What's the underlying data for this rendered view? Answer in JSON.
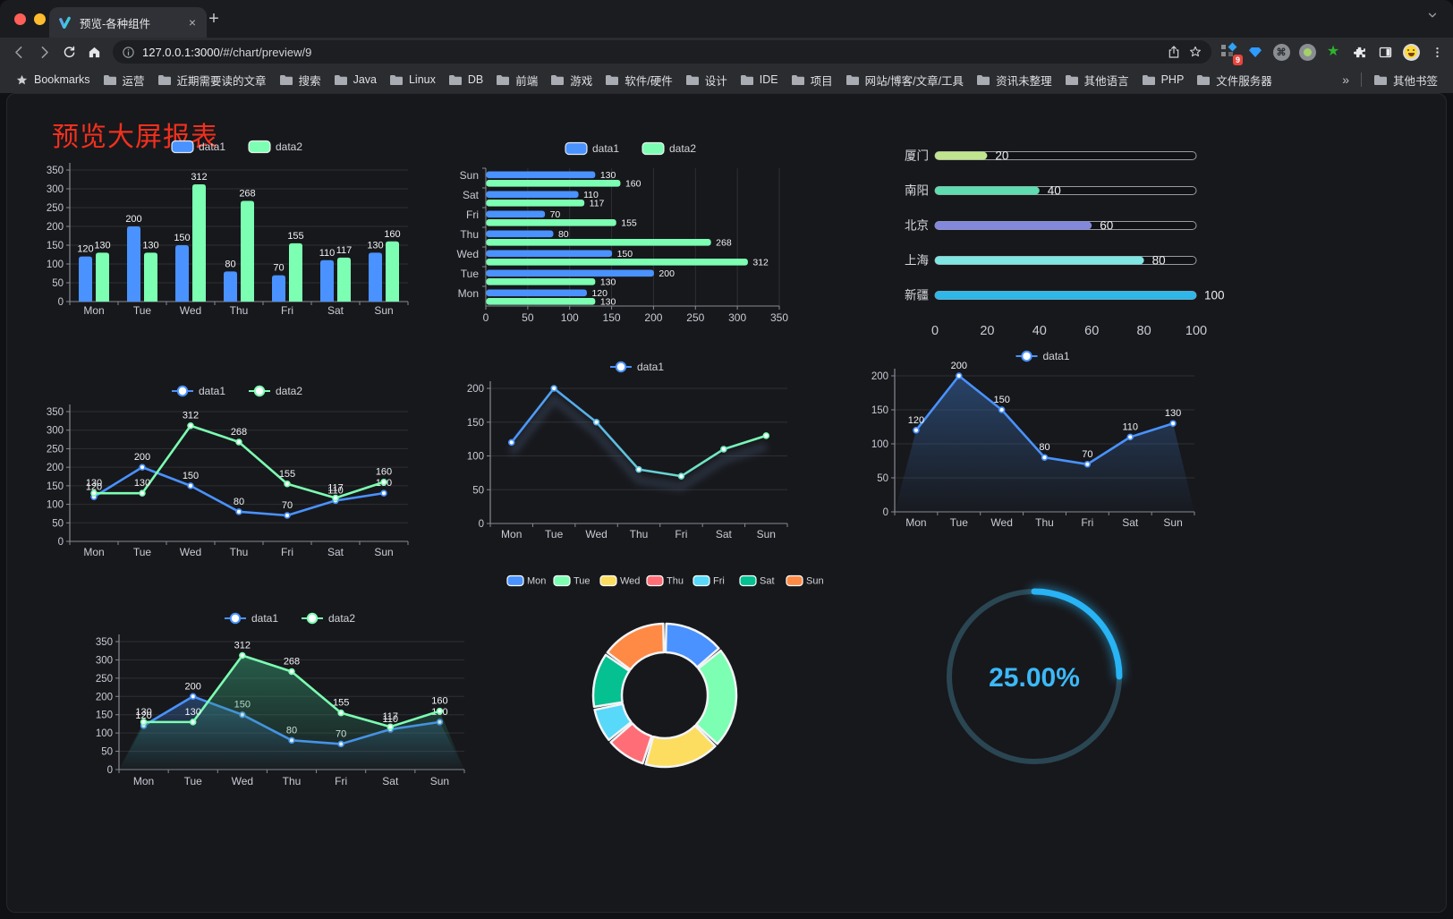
{
  "browser": {
    "traffic_lights": [
      "#ff5f57",
      "#febc2e",
      "#28c840"
    ],
    "tab_title": "预览-各种组件",
    "tab_close": "×",
    "new_tab_glyph": "+",
    "url_host": "127.0.0.1:3000",
    "url_rest": "/#/chart/preview/9",
    "extension_badge": "9",
    "cmd_symbol": "⌘",
    "bookmarks_label": "Bookmarks",
    "bookmarks": [
      "运营",
      "近期需要读的文章",
      "搜索",
      "Java",
      "Linux",
      "DB",
      "前端",
      "游戏",
      "软件/硬件",
      "设计",
      "IDE",
      "项目",
      "网站/博客/文章/工具",
      "资讯未整理",
      "其他语言",
      "PHP",
      "文件服务器"
    ],
    "bookmarks_overflow": "»",
    "other_bookmarks": "其他书签"
  },
  "page": {
    "title": "预览大屏报表",
    "title_color": "#f2301d"
  },
  "palette": {
    "accent_blue": "#4992ff",
    "accent_green": "#7cffb2",
    "gauge_blue": "#28b4f5",
    "axis_text": "#c9cbd4",
    "value_text": "#f1f2f4"
  },
  "chart_data": [
    {
      "id": "bar-grouped",
      "type": "bar",
      "categories": [
        "Mon",
        "Tue",
        "Wed",
        "Thu",
        "Fri",
        "Sat",
        "Sun"
      ],
      "series": [
        {
          "name": "data1",
          "color": "#4992ff",
          "values": [
            120,
            200,
            150,
            80,
            70,
            110,
            130
          ]
        },
        {
          "name": "data2",
          "color": "#7cffb2",
          "values": [
            130,
            130,
            312,
            268,
            155,
            117,
            160
          ]
        }
      ],
      "ylim": [
        0,
        350
      ],
      "ytick": 50,
      "legend_position": "top",
      "grid": true,
      "value_labels": true
    },
    {
      "id": "bar-horizontal",
      "type": "bar-horizontal",
      "categories_bottom_to_top": [
        "Mon",
        "Tue",
        "Wed",
        "Thu",
        "Fri",
        "Sat",
        "Sun"
      ],
      "series": [
        {
          "name": "data1",
          "color": "#4992ff",
          "values": [
            120,
            200,
            150,
            80,
            70,
            110,
            130
          ]
        },
        {
          "name": "data2",
          "color": "#7cffb2",
          "values": [
            130,
            130,
            312,
            268,
            155,
            117,
            160
          ]
        }
      ],
      "xlim": [
        0,
        350
      ],
      "xtick": 50,
      "legend_position": "top",
      "grid": true,
      "value_labels": true
    },
    {
      "id": "progress",
      "type": "progress-bar",
      "rows": [
        {
          "label": "厦门",
          "value": 20,
          "color": "#bfe58f"
        },
        {
          "label": "南阳",
          "value": 40,
          "color": "#5fdcb0"
        },
        {
          "label": "北京",
          "value": 60,
          "color": "#8289dc"
        },
        {
          "label": "上海",
          "value": 80,
          "color": "#7fe6e3"
        },
        {
          "label": "新疆",
          "value": 100,
          "color": "#2eb7e8"
        }
      ],
      "xlim": [
        0,
        100
      ],
      "xticks": [
        0,
        20,
        40,
        60,
        80,
        100
      ]
    },
    {
      "id": "line-two",
      "type": "line",
      "categories": [
        "Mon",
        "Tue",
        "Wed",
        "Thu",
        "Fri",
        "Sat",
        "Sun"
      ],
      "series": [
        {
          "name": "data1",
          "color": "#4992ff",
          "values": [
            120,
            200,
            150,
            80,
            70,
            110,
            130
          ]
        },
        {
          "name": "data2",
          "color": "#7cffb2",
          "values": [
            130,
            130,
            312,
            268,
            155,
            117,
            160
          ]
        }
      ],
      "ylim": [
        0,
        350
      ],
      "ytick": 50,
      "legend_position": "top",
      "value_labels": true
    },
    {
      "id": "line-gradient",
      "type": "line",
      "categories": [
        "Mon",
        "Tue",
        "Wed",
        "Thu",
        "Fri",
        "Sat",
        "Sun"
      ],
      "series": [
        {
          "name": "data1",
          "gradient": [
            "#4992ff",
            "#7cffb2"
          ],
          "values": [
            120,
            200,
            150,
            80,
            70,
            110,
            130
          ]
        }
      ],
      "ylim": [
        0,
        200
      ],
      "ytick": 50,
      "legend_position": "top",
      "value_labels": false
    },
    {
      "id": "line-area",
      "type": "area",
      "categories": [
        "Mon",
        "Tue",
        "Wed",
        "Thu",
        "Fri",
        "Sat",
        "Sun"
      ],
      "series": [
        {
          "name": "data1",
          "color": "#4992ff",
          "area_fill": [
            "rgba(58,110,180,0.50)",
            "rgba(58,110,180,0.02)"
          ],
          "values": [
            120,
            200,
            150,
            80,
            70,
            110,
            130
          ]
        }
      ],
      "ylim": [
        0,
        200
      ],
      "ytick": 50,
      "legend_position": "top",
      "value_labels": true
    },
    {
      "id": "area-two",
      "type": "area",
      "categories": [
        "Mon",
        "Tue",
        "Wed",
        "Thu",
        "Fri",
        "Sat",
        "Sun"
      ],
      "series": [
        {
          "name": "data1",
          "color": "#4992ff",
          "area_fill": [
            "rgba(58,110,180,0.45)",
            "rgba(58,110,180,0.02)"
          ],
          "values": [
            120,
            200,
            150,
            80,
            70,
            110,
            130
          ]
        },
        {
          "name": "data2",
          "color": "#7cffb2",
          "area_fill": [
            "rgba(52,150,112,0.55)",
            "rgba(52,150,112,0.03)"
          ],
          "values": [
            130,
            130,
            312,
            268,
            155,
            117,
            160
          ]
        }
      ],
      "ylim": [
        0,
        350
      ],
      "ytick": 50,
      "legend_position": "top",
      "value_labels": true
    },
    {
      "id": "donut",
      "type": "pie",
      "categories": [
        "Mon",
        "Tue",
        "Wed",
        "Thu",
        "Fri",
        "Sat",
        "Sun"
      ],
      "values": [
        120,
        200,
        150,
        80,
        70,
        110,
        130
      ],
      "colors": [
        "#4992ff",
        "#7cffb2",
        "#fddd60",
        "#ff6e76",
        "#58d9f9",
        "#05c091",
        "#ff8a45"
      ],
      "donut": true,
      "legend_position": "top"
    },
    {
      "id": "gauge",
      "type": "gauge",
      "value": 25,
      "label": "25.00%",
      "color": "#28b4f5",
      "track_color": "#2a4653"
    }
  ]
}
